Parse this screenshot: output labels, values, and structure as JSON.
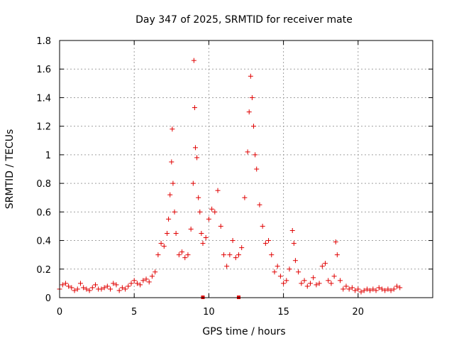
{
  "chart_data": {
    "type": "scatter",
    "title": "Day 347 of 2025, SRMTID for receiver mate",
    "xlabel": "GPS time / hours",
    "ylabel": "SRMTID / TECUs",
    "xlim": [
      0,
      25
    ],
    "ylim": [
      0,
      1.8
    ],
    "xticks": [
      0,
      5,
      10,
      15,
      20
    ],
    "xtick_labels": [
      "0",
      "5",
      "10",
      "15",
      "20"
    ],
    "yticks": [
      0,
      0.2,
      0.4,
      0.6,
      0.8,
      1.0,
      1.2,
      1.4,
      1.6,
      1.8
    ],
    "ytick_labels": [
      "0",
      "0.2",
      "0.4",
      "0.6",
      "0.8",
      "1",
      "1.2",
      "1.4",
      "1.6",
      "1.8"
    ],
    "grid": true,
    "marker": "+",
    "color": "#e00000",
    "series": [
      {
        "name": "SRMTID",
        "x": [
          0.0,
          0.2,
          0.4,
          0.6,
          0.8,
          1.0,
          1.2,
          1.4,
          1.6,
          1.8,
          2.0,
          2.2,
          2.4,
          2.6,
          2.8,
          3.0,
          3.2,
          3.4,
          3.6,
          3.8,
          4.0,
          4.2,
          4.4,
          4.6,
          4.8,
          5.0,
          5.2,
          5.4,
          5.6,
          5.8,
          6.0,
          6.2,
          6.4,
          6.6,
          6.8,
          7.0,
          7.2,
          7.3,
          7.4,
          7.5,
          7.55,
          7.6,
          7.7,
          7.8,
          8.0,
          8.2,
          8.4,
          8.6,
          8.8,
          8.95,
          9.0,
          9.05,
          9.1,
          9.2,
          9.3,
          9.4,
          9.5,
          9.6,
          9.8,
          10.0,
          10.2,
          10.4,
          10.6,
          10.8,
          11.0,
          11.2,
          11.4,
          11.6,
          11.8,
          12.0,
          12.2,
          12.4,
          12.6,
          12.7,
          12.8,
          12.9,
          13.0,
          13.1,
          13.2,
          13.4,
          13.6,
          13.8,
          14.0,
          14.2,
          14.4,
          14.6,
          14.8,
          15.0,
          15.2,
          15.4,
          15.6,
          15.7,
          15.8,
          16.0,
          16.2,
          16.4,
          16.6,
          16.8,
          17.0,
          17.2,
          17.4,
          17.6,
          17.8,
          18.0,
          18.2,
          18.4,
          18.5,
          18.6,
          18.8,
          19.0,
          19.2,
          19.4,
          19.6,
          19.8,
          20.0,
          20.2,
          20.4,
          20.6,
          20.8,
          21.0,
          21.2,
          21.4,
          21.6,
          21.8,
          22.0,
          22.2,
          22.4,
          22.6,
          22.8
        ],
        "y": [
          0.06,
          0.09,
          0.1,
          0.08,
          0.07,
          0.05,
          0.06,
          0.1,
          0.07,
          0.06,
          0.05,
          0.07,
          0.09,
          0.06,
          0.06,
          0.07,
          0.08,
          0.06,
          0.1,
          0.09,
          0.05,
          0.07,
          0.06,
          0.08,
          0.1,
          0.12,
          0.1,
          0.09,
          0.12,
          0.13,
          0.11,
          0.15,
          0.18,
          0.3,
          0.38,
          0.36,
          0.45,
          0.55,
          0.72,
          0.95,
          1.18,
          0.8,
          0.6,
          0.45,
          0.3,
          0.32,
          0.28,
          0.3,
          0.48,
          0.8,
          1.66,
          1.33,
          1.05,
          0.98,
          0.7,
          0.6,
          0.45,
          0.38,
          0.42,
          0.55,
          0.62,
          0.6,
          0.75,
          0.5,
          0.3,
          0.22,
          0.3,
          0.4,
          0.28,
          0.3,
          0.35,
          0.7,
          1.02,
          1.3,
          1.55,
          1.4,
          1.2,
          1.0,
          0.9,
          0.65,
          0.5,
          0.38,
          0.4,
          0.3,
          0.18,
          0.22,
          0.15,
          0.1,
          0.12,
          0.2,
          0.47,
          0.38,
          0.26,
          0.18,
          0.1,
          0.12,
          0.08,
          0.1,
          0.14,
          0.09,
          0.1,
          0.22,
          0.24,
          0.12,
          0.1,
          0.15,
          0.39,
          0.3,
          0.12,
          0.06,
          0.08,
          0.06,
          0.07,
          0.05,
          0.06,
          0.04,
          0.05,
          0.06,
          0.05,
          0.06,
          0.05,
          0.07,
          0.06,
          0.05,
          0.06,
          0.05,
          0.06,
          0.08,
          0.07
        ]
      }
    ],
    "gap_markers": {
      "x": [
        9.6,
        12.0
      ],
      "y": [
        0.0,
        0.0
      ]
    }
  }
}
